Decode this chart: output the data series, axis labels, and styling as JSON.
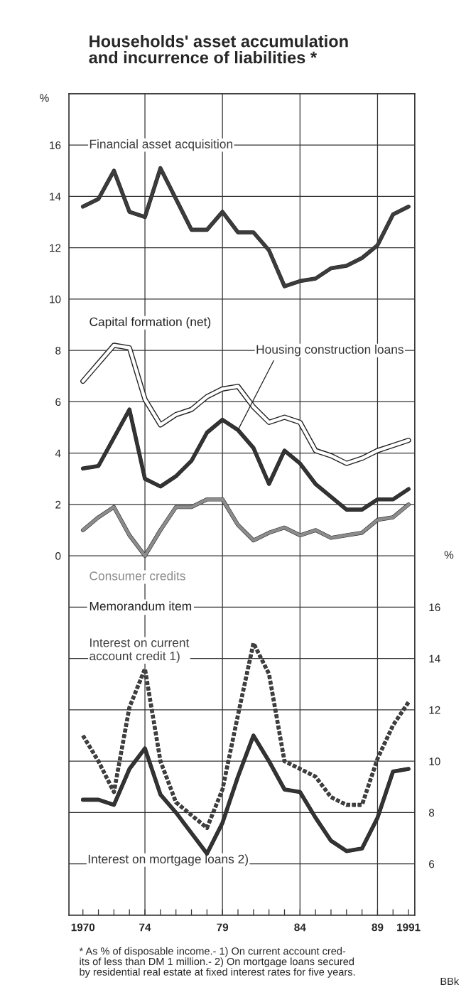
{
  "chart_data": {
    "type": "line",
    "title": "Households' asset accumulation\nand incurrence of liabilities *",
    "ylabel": "%",
    "y2label": "%",
    "x": [
      1970,
      1971,
      1972,
      1973,
      1974,
      1975,
      1976,
      1977,
      1978,
      1979,
      1980,
      1981,
      1982,
      1983,
      1984,
      1985,
      1986,
      1987,
      1988,
      1989,
      1990,
      1991
    ],
    "xlim": [
      1969.1,
      1991.4
    ],
    "xticks": [
      {
        "value": 1970,
        "label": "1970"
      },
      {
        "value": 1971,
        "label": null
      },
      {
        "value": 1972,
        "label": null
      },
      {
        "value": 1973,
        "label": null
      },
      {
        "value": 1974,
        "label": "74"
      },
      {
        "value": 1975,
        "label": null
      },
      {
        "value": 1976,
        "label": null
      },
      {
        "value": 1977,
        "label": null
      },
      {
        "value": 1978,
        "label": null
      },
      {
        "value": 1979,
        "label": "79"
      },
      {
        "value": 1980,
        "label": null
      },
      {
        "value": 1981,
        "label": null
      },
      {
        "value": 1982,
        "label": null
      },
      {
        "value": 1983,
        "label": null
      },
      {
        "value": 1984,
        "label": "84"
      },
      {
        "value": 1985,
        "label": null
      },
      {
        "value": 1986,
        "label": null
      },
      {
        "value": 1987,
        "label": null
      },
      {
        "value": 1988,
        "label": null
      },
      {
        "value": 1989,
        "label": "89"
      },
      {
        "value": 1990,
        "label": null
      },
      {
        "value": 1991,
        "label": "1991"
      }
    ],
    "ylim": [
      -14,
      18
    ],
    "yticks": [
      0,
      2,
      4,
      6,
      8,
      10,
      12,
      14,
      16
    ],
    "y2lim": [
      4,
      36
    ],
    "y2ticks": [
      6,
      8,
      10,
      12,
      14,
      16
    ],
    "grid": "y",
    "ref_lines": [
      {
        "axis": "x",
        "value": 1974,
        "color": "#333333"
      },
      {
        "axis": "x",
        "value": 1979,
        "color": "#333333"
      },
      {
        "axis": "x",
        "value": 1984,
        "color": "#333333"
      },
      {
        "axis": "x",
        "value": 1989,
        "color": "#333333"
      }
    ],
    "series": [
      {
        "name": "Financial asset acquisition",
        "color": "#3c3c3c",
        "line_style": "solid",
        "values": [
          13.6,
          13.9,
          15.0,
          13.4,
          13.2,
          15.1,
          13.9,
          12.7,
          12.7,
          13.4,
          12.6,
          12.6,
          11.9,
          10.5,
          10.7,
          10.8,
          11.2,
          11.3,
          11.6,
          12.1,
          13.3,
          13.6
        ]
      },
      {
        "name": "Capital formation (net)",
        "color": "#ffffff",
        "line_style": "solid",
        "values": [
          6.8,
          7.5,
          8.2,
          8.1,
          6.1,
          5.1,
          5.5,
          5.7,
          6.2,
          6.5,
          6.6,
          5.8,
          5.2,
          5.4,
          5.2,
          4.1,
          3.9,
          3.6,
          3.8,
          4.1,
          4.3,
          4.5
        ]
      },
      {
        "name": "Housing construction loans",
        "color": "#333333",
        "line_style": "solid",
        "values": [
          3.4,
          3.5,
          4.6,
          5.7,
          3.0,
          2.7,
          3.1,
          3.7,
          4.8,
          5.3,
          4.9,
          4.2,
          2.8,
          4.1,
          3.6,
          2.8,
          2.3,
          1.8,
          1.8,
          2.2,
          2.2,
          2.6
        ]
      },
      {
        "name": "Consumer credits",
        "color": "#8c8c8c",
        "line_style": "solid",
        "values": [
          1.0,
          1.5,
          1.9,
          0.8,
          0.0,
          1.0,
          1.9,
          1.9,
          2.2,
          2.2,
          1.2,
          0.6,
          0.9,
          1.1,
          0.8,
          1.0,
          0.7,
          0.8,
          0.9,
          1.4,
          1.5,
          2.0
        ]
      },
      {
        "name": "Interest on current\naccount credit 1)",
        "color": "#404040",
        "line_style": "dashed",
        "axis": "y2",
        "values": [
          11.0,
          10.0,
          8.8,
          12.1,
          13.6,
          10.0,
          8.4,
          7.9,
          7.4,
          8.9,
          11.8,
          14.6,
          13.4,
          10.0,
          9.7,
          9.4,
          8.6,
          8.3,
          8.3,
          10.1,
          11.4,
          12.3
        ]
      },
      {
        "name": "Interest on mortgage loans 2)",
        "color": "#333333",
        "line_style": "solid",
        "axis": "y2",
        "values": [
          8.5,
          8.5,
          8.3,
          9.7,
          10.5,
          8.7,
          8.0,
          7.2,
          6.4,
          7.6,
          9.4,
          11.0,
          10.0,
          8.9,
          8.8,
          7.8,
          6.9,
          6.5,
          6.6,
          7.8,
          9.6,
          9.7
        ]
      }
    ],
    "annotations": [
      "Memorandum item",
      "* As % of disposable income.- 1) On current account cred-\nits of less than DM 1 million.- 2) On mortgage loans secured\nby residential real estate at fixed interest rates for five years.",
      "BBk"
    ]
  }
}
